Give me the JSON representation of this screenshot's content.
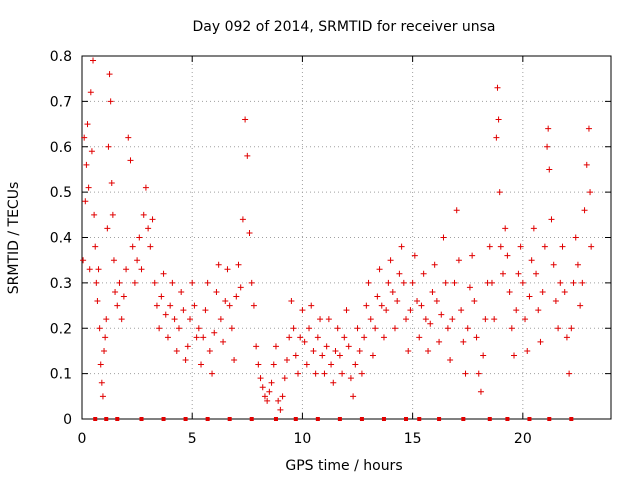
{
  "chart_data": {
    "type": "scatter",
    "title": "Day 092 of 2014, SRMTID for receiver unsa",
    "xlabel": "GPS time / hours",
    "ylabel": "SRMTID / TECUs",
    "xlim": [
      0,
      24
    ],
    "ylim": [
      0,
      0.8
    ],
    "xticks": [
      0,
      5,
      10,
      15,
      20
    ],
    "yticks": [
      0,
      0.1,
      0.2,
      0.3,
      0.4,
      0.5,
      0.6,
      0.7,
      0.8
    ],
    "xtick_labels": [
      "0",
      "5",
      "10",
      "15",
      "20"
    ],
    "ytick_labels": [
      "0",
      "0.1",
      "0.2",
      "0.3",
      "0.4",
      "0.5",
      "0.6",
      "0.7",
      "0.8"
    ],
    "grid": true,
    "marker": "plus",
    "series_color": "#e00000",
    "series": [
      {
        "name": "SRMTID",
        "points": [
          [
            0.05,
            0.35
          ],
          [
            0.1,
            0.62
          ],
          [
            0.15,
            0.48
          ],
          [
            0.2,
            0.56
          ],
          [
            0.25,
            0.65
          ],
          [
            0.3,
            0.51
          ],
          [
            0.35,
            0.33
          ],
          [
            0.4,
            0.72
          ],
          [
            0.45,
            0.59
          ],
          [
            0.5,
            0.79
          ],
          [
            0.55,
            0.45
          ],
          [
            0.6,
            0.38
          ],
          [
            0.65,
            0.3
          ],
          [
            0.7,
            0.26
          ],
          [
            0.75,
            0.33
          ],
          [
            0.8,
            0.2
          ],
          [
            0.85,
            0.12
          ],
          [
            0.9,
            0.08
          ],
          [
            0.95,
            0.05
          ],
          [
            1.0,
            0.15
          ],
          [
            1.05,
            0.18
          ],
          [
            1.1,
            0.22
          ],
          [
            1.15,
            0.42
          ],
          [
            1.2,
            0.6
          ],
          [
            1.25,
            0.76
          ],
          [
            1.3,
            0.7
          ],
          [
            1.35,
            0.52
          ],
          [
            1.4,
            0.45
          ],
          [
            1.45,
            0.35
          ],
          [
            1.5,
            0.28
          ],
          [
            1.6,
            0.25
          ],
          [
            1.7,
            0.3
          ],
          [
            1.8,
            0.22
          ],
          [
            1.9,
            0.27
          ],
          [
            2.0,
            0.33
          ],
          [
            2.1,
            0.62
          ],
          [
            2.2,
            0.57
          ],
          [
            2.3,
            0.38
          ],
          [
            2.4,
            0.3
          ],
          [
            2.5,
            0.35
          ],
          [
            2.6,
            0.4
          ],
          [
            2.7,
            0.33
          ],
          [
            2.8,
            0.45
          ],
          [
            2.9,
            0.51
          ],
          [
            3.0,
            0.42
          ],
          [
            3.1,
            0.38
          ],
          [
            3.2,
            0.44
          ],
          [
            3.3,
            0.3
          ],
          [
            3.4,
            0.25
          ],
          [
            3.5,
            0.2
          ],
          [
            3.6,
            0.27
          ],
          [
            3.7,
            0.32
          ],
          [
            3.8,
            0.23
          ],
          [
            3.9,
            0.18
          ],
          [
            4.0,
            0.25
          ],
          [
            4.1,
            0.3
          ],
          [
            4.2,
            0.22
          ],
          [
            4.3,
            0.15
          ],
          [
            4.4,
            0.2
          ],
          [
            4.5,
            0.28
          ],
          [
            4.6,
            0.24
          ],
          [
            4.7,
            0.13
          ],
          [
            4.8,
            0.16
          ],
          [
            4.9,
            0.22
          ],
          [
            5.0,
            0.3
          ],
          [
            5.1,
            0.25
          ],
          [
            5.2,
            0.18
          ],
          [
            5.3,
            0.2
          ],
          [
            5.4,
            0.12
          ],
          [
            5.5,
            0.18
          ],
          [
            5.6,
            0.24
          ],
          [
            5.7,
            0.3
          ],
          [
            5.8,
            0.15
          ],
          [
            5.9,
            0.1
          ],
          [
            6.0,
            0.19
          ],
          [
            6.1,
            0.28
          ],
          [
            6.2,
            0.34
          ],
          [
            6.3,
            0.22
          ],
          [
            6.4,
            0.17
          ],
          [
            6.5,
            0.26
          ],
          [
            6.6,
            0.33
          ],
          [
            6.7,
            0.25
          ],
          [
            6.8,
            0.2
          ],
          [
            6.9,
            0.13
          ],
          [
            7.0,
            0.27
          ],
          [
            7.1,
            0.34
          ],
          [
            7.2,
            0.29
          ],
          [
            7.3,
            0.44
          ],
          [
            7.4,
            0.66
          ],
          [
            7.5,
            0.58
          ],
          [
            7.6,
            0.41
          ],
          [
            7.7,
            0.3
          ],
          [
            7.8,
            0.25
          ],
          [
            7.9,
            0.16
          ],
          [
            8.0,
            0.12
          ],
          [
            8.1,
            0.09
          ],
          [
            8.2,
            0.07
          ],
          [
            8.3,
            0.05
          ],
          [
            8.4,
            0.04
          ],
          [
            8.5,
            0.06
          ],
          [
            8.6,
            0.08
          ],
          [
            8.7,
            0.12
          ],
          [
            8.8,
            0.16
          ],
          [
            8.9,
            0.04
          ],
          [
            9.0,
            0.02
          ],
          [
            9.1,
            0.05
          ],
          [
            9.2,
            0.09
          ],
          [
            9.3,
            0.13
          ],
          [
            9.4,
            0.18
          ],
          [
            9.5,
            0.26
          ],
          [
            9.6,
            0.2
          ],
          [
            9.7,
            0.14
          ],
          [
            9.8,
            0.1
          ],
          [
            9.9,
            0.18
          ],
          [
            10.0,
            0.24
          ],
          [
            10.1,
            0.17
          ],
          [
            10.2,
            0.12
          ],
          [
            10.3,
            0.2
          ],
          [
            10.4,
            0.25
          ],
          [
            10.5,
            0.15
          ],
          [
            10.6,
            0.1
          ],
          [
            10.7,
            0.18
          ],
          [
            10.8,
            0.22
          ],
          [
            10.9,
            0.14
          ],
          [
            11.0,
            0.1
          ],
          [
            11.1,
            0.16
          ],
          [
            11.2,
            0.22
          ],
          [
            11.3,
            0.12
          ],
          [
            11.4,
            0.08
          ],
          [
            11.5,
            0.15
          ],
          [
            11.6,
            0.2
          ],
          [
            11.7,
            0.14
          ],
          [
            11.8,
            0.1
          ],
          [
            11.9,
            0.18
          ],
          [
            12.0,
            0.24
          ],
          [
            12.1,
            0.16
          ],
          [
            12.2,
            0.09
          ],
          [
            12.3,
            0.05
          ],
          [
            12.4,
            0.12
          ],
          [
            12.5,
            0.2
          ],
          [
            12.6,
            0.15
          ],
          [
            12.7,
            0.1
          ],
          [
            12.8,
            0.18
          ],
          [
            12.9,
            0.25
          ],
          [
            13.0,
            0.3
          ],
          [
            13.1,
            0.22
          ],
          [
            13.2,
            0.14
          ],
          [
            13.3,
            0.2
          ],
          [
            13.4,
            0.27
          ],
          [
            13.5,
            0.33
          ],
          [
            13.6,
            0.25
          ],
          [
            13.7,
            0.18
          ],
          [
            13.8,
            0.24
          ],
          [
            13.9,
            0.3
          ],
          [
            14.0,
            0.35
          ],
          [
            14.1,
            0.28
          ],
          [
            14.2,
            0.2
          ],
          [
            14.3,
            0.26
          ],
          [
            14.4,
            0.32
          ],
          [
            14.5,
            0.38
          ],
          [
            14.6,
            0.3
          ],
          [
            14.7,
            0.22
          ],
          [
            14.8,
            0.15
          ],
          [
            14.9,
            0.24
          ],
          [
            15.0,
            0.3
          ],
          [
            15.1,
            0.36
          ],
          [
            15.2,
            0.26
          ],
          [
            15.3,
            0.18
          ],
          [
            15.4,
            0.25
          ],
          [
            15.5,
            0.32
          ],
          [
            15.6,
            0.22
          ],
          [
            15.7,
            0.15
          ],
          [
            15.8,
            0.21
          ],
          [
            15.9,
            0.28
          ],
          [
            16.0,
            0.34
          ],
          [
            16.1,
            0.26
          ],
          [
            16.2,
            0.17
          ],
          [
            16.3,
            0.23
          ],
          [
            16.4,
            0.4
          ],
          [
            16.5,
            0.3
          ],
          [
            16.6,
            0.2
          ],
          [
            16.7,
            0.13
          ],
          [
            16.8,
            0.22
          ],
          [
            16.9,
            0.3
          ],
          [
            17.0,
            0.46
          ],
          [
            17.1,
            0.35
          ],
          [
            17.2,
            0.24
          ],
          [
            17.3,
            0.17
          ],
          [
            17.4,
            0.1
          ],
          [
            17.5,
            0.2
          ],
          [
            17.6,
            0.29
          ],
          [
            17.7,
            0.36
          ],
          [
            17.8,
            0.26
          ],
          [
            17.9,
            0.18
          ],
          [
            18.0,
            0.1
          ],
          [
            18.1,
            0.06
          ],
          [
            18.2,
            0.14
          ],
          [
            18.3,
            0.22
          ],
          [
            18.4,
            0.3
          ],
          [
            18.5,
            0.38
          ],
          [
            18.6,
            0.3
          ],
          [
            18.7,
            0.22
          ],
          [
            18.8,
            0.62
          ],
          [
            18.85,
            0.73
          ],
          [
            18.9,
            0.66
          ],
          [
            18.95,
            0.5
          ],
          [
            19.0,
            0.38
          ],
          [
            19.1,
            0.32
          ],
          [
            19.2,
            0.42
          ],
          [
            19.3,
            0.36
          ],
          [
            19.4,
            0.28
          ],
          [
            19.5,
            0.2
          ],
          [
            19.6,
            0.14
          ],
          [
            19.7,
            0.24
          ],
          [
            19.8,
            0.32
          ],
          [
            19.9,
            0.38
          ],
          [
            20.0,
            0.3
          ],
          [
            20.1,
            0.22
          ],
          [
            20.2,
            0.15
          ],
          [
            20.3,
            0.27
          ],
          [
            20.4,
            0.35
          ],
          [
            20.5,
            0.42
          ],
          [
            20.6,
            0.32
          ],
          [
            20.7,
            0.24
          ],
          [
            20.8,
            0.17
          ],
          [
            20.9,
            0.28
          ],
          [
            21.0,
            0.38
          ],
          [
            21.1,
            0.6
          ],
          [
            21.15,
            0.64
          ],
          [
            21.2,
            0.55
          ],
          [
            21.3,
            0.44
          ],
          [
            21.4,
            0.34
          ],
          [
            21.5,
            0.26
          ],
          [
            21.6,
            0.2
          ],
          [
            21.7,
            0.3
          ],
          [
            21.8,
            0.38
          ],
          [
            21.9,
            0.28
          ],
          [
            22.0,
            0.18
          ],
          [
            22.1,
            0.1
          ],
          [
            22.2,
            0.2
          ],
          [
            22.3,
            0.3
          ],
          [
            22.4,
            0.4
          ],
          [
            22.5,
            0.34
          ],
          [
            22.6,
            0.25
          ],
          [
            22.7,
            0.3
          ],
          [
            22.8,
            0.46
          ],
          [
            22.9,
            0.56
          ],
          [
            23.0,
            0.64
          ],
          [
            23.05,
            0.5
          ],
          [
            23.1,
            0.38
          ]
        ]
      }
    ],
    "baseline_markers": {
      "name": "data-gap markers",
      "y": 0,
      "x": [
        0.6,
        1.1,
        1.6,
        2.7,
        3.7,
        4.7,
        5.7,
        6.7,
        7.7,
        8.8,
        9.7,
        10.7,
        11.7,
        12.7,
        13.7,
        14.7,
        15.3,
        16.2,
        17.3,
        18.5,
        19.3,
        20.3,
        21.2,
        22.2
      ]
    }
  }
}
